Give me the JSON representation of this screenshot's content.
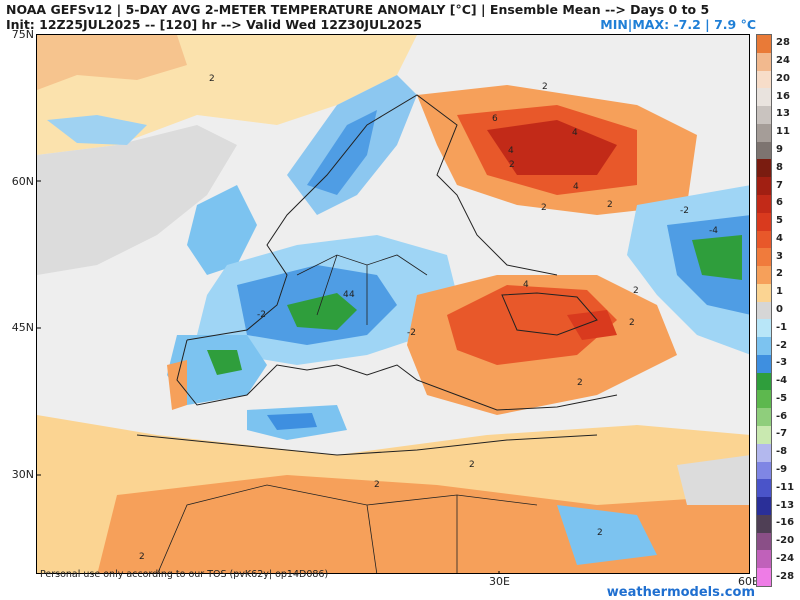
{
  "header": {
    "line1": "NOAA GEFSv12 | 5-DAY AVG 2-METER TEMPERATURE ANOMALY [°C] | Ensemble Mean --> Days 0 to 5",
    "line2": "Init: 12Z25JUL2025 -- [120] hr --> Valid Wed 12Z30JUL2025",
    "minmax": "MIN|MAX: -7.2 | 7.9 °C"
  },
  "map": {
    "lat_labels": [
      "75N",
      "60N",
      "45N",
      "30N"
    ],
    "lon_labels": [
      "30E",
      "60E"
    ],
    "contour_labels": [
      "2",
      "2",
      "2",
      "2",
      "4",
      "6",
      "4",
      "4",
      "2",
      "4",
      "-2",
      "4",
      "2",
      "2",
      "-2",
      "-4",
      "4",
      "2",
      "2",
      "2",
      "-2",
      "2",
      "2"
    ]
  },
  "footer": {
    "tos": "Personal use only according to our TOS (pvK62y| op14D086)",
    "brand": "weathermodels.com"
  },
  "legend": {
    "items": [
      {
        "label": "28",
        "color": "#e97a37"
      },
      {
        "label": "24",
        "color": "#f2b98e"
      },
      {
        "label": "20",
        "color": "#f7ddc9"
      },
      {
        "label": "16",
        "color": "#e9e3de"
      },
      {
        "label": "13",
        "color": "#c9c3bf"
      },
      {
        "label": "11",
        "color": "#a59d98"
      },
      {
        "label": "9",
        "color": "#7d7470"
      },
      {
        "label": "8",
        "color": "#7a1c10"
      },
      {
        "label": "7",
        "color": "#a11f12"
      },
      {
        "label": "6",
        "color": "#c22a18"
      },
      {
        "label": "5",
        "color": "#d93a1e"
      },
      {
        "label": "4",
        "color": "#e8582a"
      },
      {
        "label": "3",
        "color": "#f07b3c"
      },
      {
        "label": "2",
        "color": "#f6a05a"
      },
      {
        "label": "1",
        "color": "#fbd492"
      },
      {
        "label": "0",
        "color": "#d6d6d6"
      },
      {
        "label": "-1",
        "color": "#b8e6f8"
      },
      {
        "label": "-2",
        "color": "#7cc3f0"
      },
      {
        "label": "-3",
        "color": "#3e8fe0"
      },
      {
        "label": "-4",
        "color": "#2f9e3c"
      },
      {
        "label": "-5",
        "color": "#5db84e"
      },
      {
        "label": "-6",
        "color": "#8fce7c"
      },
      {
        "label": "-7",
        "color": "#c9e9b0"
      },
      {
        "label": "-8",
        "color": "#b3b8ee"
      },
      {
        "label": "-9",
        "color": "#7f86e4"
      },
      {
        "label": "-11",
        "color": "#4a54c9"
      },
      {
        "label": "-13",
        "color": "#2a2f98"
      },
      {
        "label": "-16",
        "color": "#4f3f55"
      },
      {
        "label": "-20",
        "color": "#8a4f87"
      },
      {
        "label": "-24",
        "color": "#c061ba"
      },
      {
        "label": "-28",
        "color": "#ee7ce6"
      }
    ]
  }
}
